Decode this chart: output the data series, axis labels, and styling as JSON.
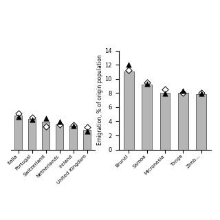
{
  "left_categories": [
    "Italia",
    "Portugal",
    "Switzerland",
    "Netherlands",
    "Ireland",
    "United Kingdom"
  ],
  "left_bars": [
    4.8,
    4.3,
    3.9,
    3.6,
    3.4,
    2.8
  ],
  "left_males": [
    4.6,
    4.2,
    4.4,
    3.9,
    3.4,
    2.6
  ],
  "left_females": [
    5.1,
    4.5,
    3.3,
    3.6,
    3.5,
    3.2
  ],
  "right_categories": [
    "Brunei",
    "Samoa",
    "Micronesia",
    "Tonga",
    "Zimb..."
  ],
  "right_bars": [
    11.0,
    9.2,
    8.0,
    8.0,
    7.8
  ],
  "right_males": [
    12.0,
    9.3,
    7.9,
    8.3,
    7.9
  ],
  "right_females": [
    11.2,
    9.5,
    8.5,
    8.0,
    8.0
  ],
  "bar_color": "#b5b5b5",
  "bar_edgecolor": "#555555",
  "ylabel": "Emigration, % of origin population",
  "ylim": [
    0,
    14
  ],
  "yticks": [
    0,
    2,
    4,
    6,
    8,
    10,
    12,
    14
  ],
  "background_color": "#ffffff"
}
